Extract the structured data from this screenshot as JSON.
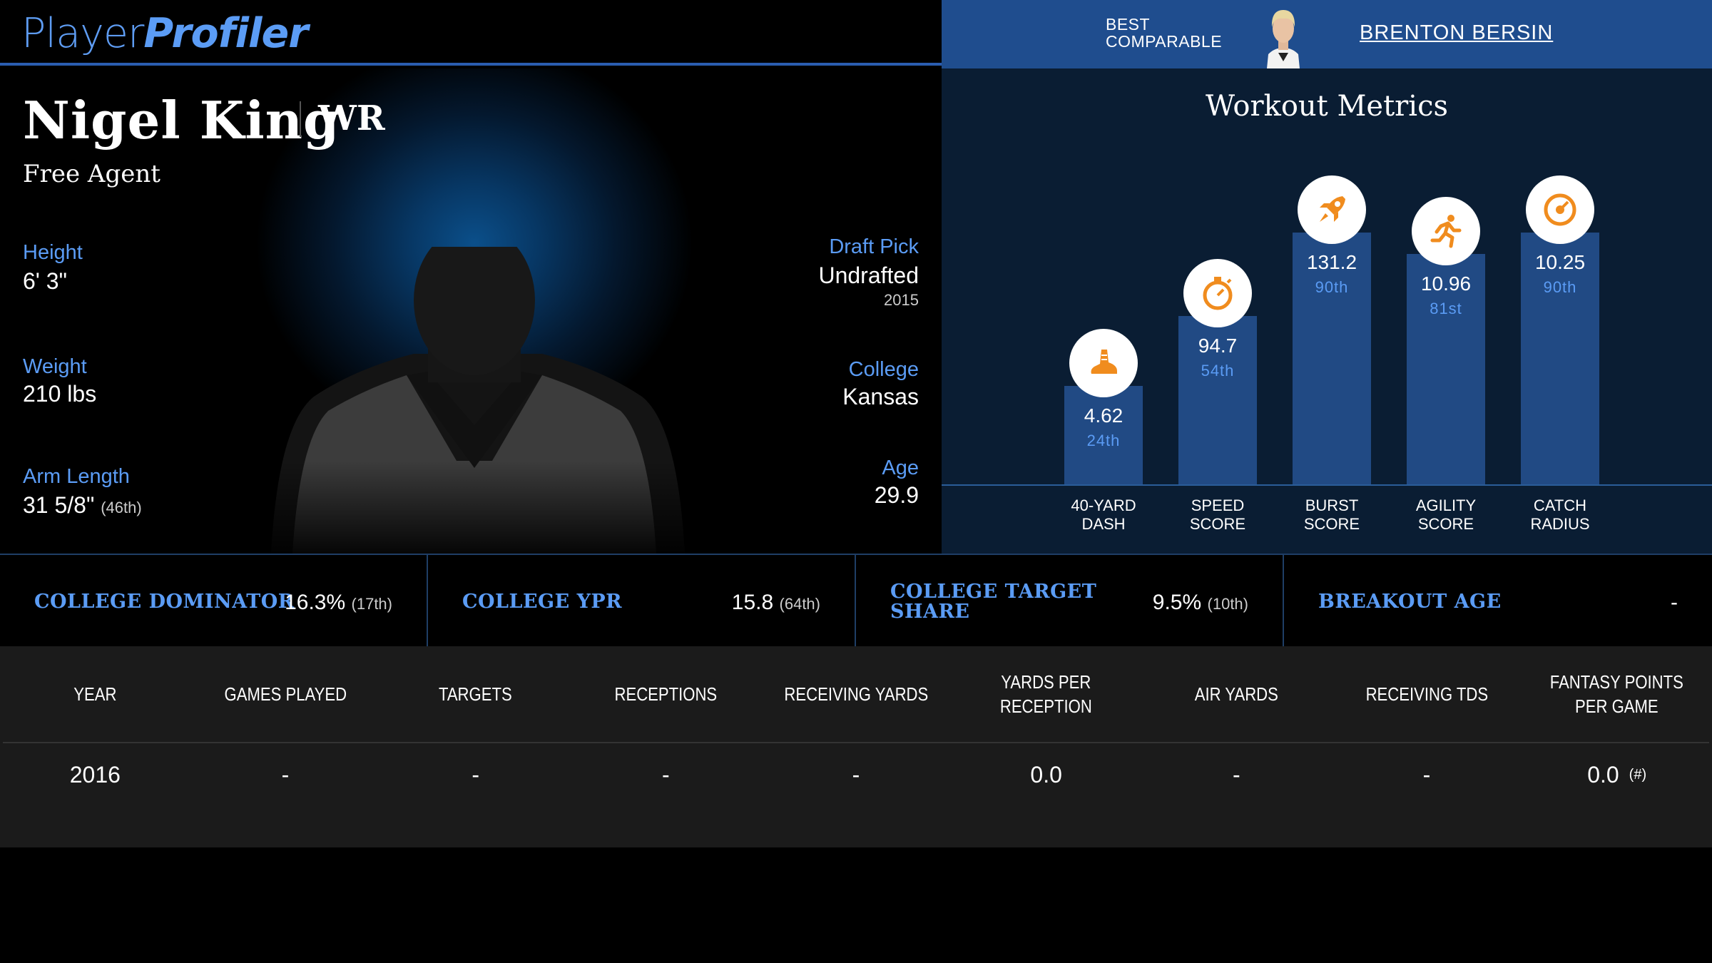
{
  "header": {
    "logo_player": "Player",
    "logo_profiler": "Profiler",
    "best_comparable_line1": "BEST",
    "best_comparable_line2": "COMPARABLE",
    "comparable_name": "BRENTON BERSIN"
  },
  "player": {
    "name": "Nigel King",
    "position": "WR",
    "team": "Free Agent",
    "height_label": "Height",
    "height": "6' 3\"",
    "weight_label": "Weight",
    "weight": "210 lbs",
    "arm_label": "Arm Length",
    "arm": "31 5/8\"",
    "arm_pct": "(46th)",
    "draft_label": "Draft Pick",
    "draft": "Undrafted",
    "draft_year": "2015",
    "college_label": "College",
    "college": "Kansas",
    "age_label": "Age",
    "age": "29.9"
  },
  "workout": {
    "title": "Workout Metrics",
    "metrics": [
      {
        "label1": "40-YARD",
        "label2": "DASH",
        "value": "4.62",
        "pct": "24th",
        "icon": "shoe-icon",
        "percentile": 24
      },
      {
        "label1": "SPEED",
        "label2": "SCORE",
        "value": "94.7",
        "pct": "54th",
        "icon": "stopwatch-icon",
        "percentile": 54
      },
      {
        "label1": "BURST",
        "label2": "SCORE",
        "value": "131.2",
        "pct": "90th",
        "icon": "rocket-icon",
        "percentile": 90
      },
      {
        "label1": "AGILITY",
        "label2": "SCORE",
        "value": "10.96",
        "pct": "81st",
        "icon": "runner-icon",
        "percentile": 81
      },
      {
        "label1": "CATCH",
        "label2": "RADIUS",
        "value": "10.25",
        "pct": "90th",
        "icon": "target-icon",
        "percentile": 90
      }
    ]
  },
  "college_metrics": [
    {
      "label1": "COLLEGE DOMINATOR",
      "label2": "",
      "value": "16.3%",
      "pct": "(17th)"
    },
    {
      "label1": "COLLEGE YPR",
      "label2": "",
      "value": "15.8",
      "pct": "(64th)"
    },
    {
      "label1": "COLLEGE TARGET",
      "label2": "SHARE",
      "value": "9.5%",
      "pct": "(10th)"
    },
    {
      "label1": "BREAKOUT AGE",
      "label2": "",
      "value": "-",
      "pct": ""
    }
  ],
  "stats_table": {
    "headers": [
      "YEAR",
      "GAMES PLAYED",
      "TARGETS",
      "RECEPTIONS",
      "RECEIVING YARDS",
      "YARDS PER RECEPTION",
      "AIR YARDS",
      "RECEIVING TDS",
      "FANTASY POINTS PER GAME"
    ],
    "row": [
      "2016",
      "-",
      "-",
      "-",
      "-",
      "0.0",
      "-",
      "-",
      "0.0"
    ],
    "row_note": "(#)"
  },
  "colors": {
    "accent_blue": "#5b9cf5",
    "header_blue": "#1f4d8e",
    "bar_blue": "#214a84",
    "icon_orange": "#f08c1e"
  }
}
